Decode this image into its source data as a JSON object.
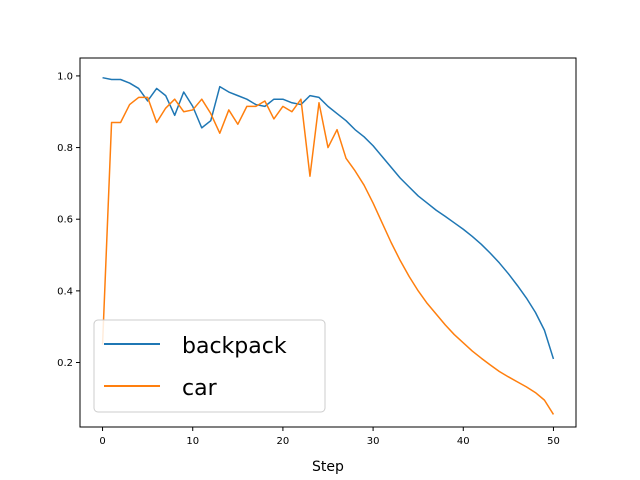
{
  "chart_data": {
    "type": "line",
    "title": "",
    "xlabel": "Step",
    "ylabel": "",
    "xlim": [
      -2.5,
      52.5
    ],
    "ylim": [
      0.02,
      1.05
    ],
    "x_ticks": [
      "0",
      "10",
      "20",
      "30",
      "40",
      "50"
    ],
    "y_ticks": [
      "0.2",
      "0.4",
      "0.6",
      "0.8",
      "1.0"
    ],
    "grid": false,
    "legend_position": "lower-left",
    "x": [
      0,
      1,
      2,
      3,
      4,
      5,
      6,
      7,
      8,
      9,
      10,
      11,
      12,
      13,
      14,
      15,
      16,
      17,
      18,
      19,
      20,
      21,
      22,
      23,
      24,
      25,
      26,
      27,
      28,
      29,
      30,
      31,
      32,
      33,
      34,
      35,
      36,
      37,
      38,
      39,
      40,
      41,
      42,
      43,
      44,
      45,
      46,
      47,
      48,
      49,
      50
    ],
    "series": [
      {
        "name": "backpack",
        "color": "#1f77b4",
        "values": [
          0.995,
          0.99,
          0.99,
          0.98,
          0.965,
          0.93,
          0.965,
          0.945,
          0.89,
          0.955,
          0.915,
          0.855,
          0.875,
          0.97,
          0.955,
          0.945,
          0.935,
          0.92,
          0.915,
          0.935,
          0.935,
          0.925,
          0.92,
          0.945,
          0.94,
          0.915,
          0.895,
          0.875,
          0.85,
          0.83,
          0.805,
          0.775,
          0.745,
          0.715,
          0.69,
          0.665,
          0.645,
          0.625,
          0.608,
          0.59,
          0.572,
          0.552,
          0.53,
          0.505,
          0.478,
          0.448,
          0.415,
          0.38,
          0.34,
          0.29,
          0.21
        ]
      },
      {
        "name": "car",
        "color": "#ff7f0e",
        "values": [
          0.25,
          0.87,
          0.87,
          0.92,
          0.94,
          0.94,
          0.87,
          0.91,
          0.935,
          0.9,
          0.905,
          0.935,
          0.895,
          0.84,
          0.905,
          0.865,
          0.915,
          0.915,
          0.93,
          0.88,
          0.915,
          0.9,
          0.935,
          0.72,
          0.925,
          0.8,
          0.85,
          0.77,
          0.735,
          0.695,
          0.645,
          0.59,
          0.535,
          0.485,
          0.44,
          0.4,
          0.365,
          0.335,
          0.305,
          0.278,
          0.255,
          0.232,
          0.212,
          0.193,
          0.175,
          0.16,
          0.146,
          0.132,
          0.116,
          0.095,
          0.055
        ]
      }
    ]
  }
}
